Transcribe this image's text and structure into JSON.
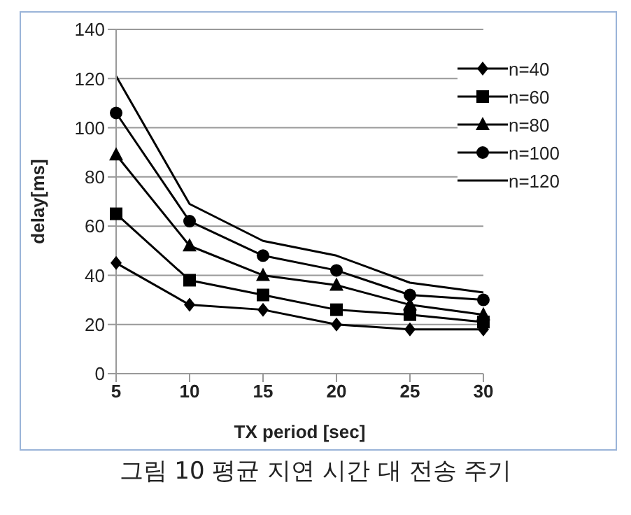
{
  "chart_data": {
    "type": "line",
    "categories": [
      "5",
      "10",
      "15",
      "20",
      "25",
      "30"
    ],
    "xlabel": "TX period [sec]",
    "ylabel": "delay[ms]",
    "ylim": [
      0,
      140
    ],
    "yticks": [
      0,
      20,
      40,
      60,
      80,
      100,
      120,
      140
    ],
    "grid": "y",
    "legend": "top right",
    "annotations": [
      "그림 10 평균 지연 시간 대 전송 주기"
    ],
    "series": [
      {
        "name": "n=40",
        "color": "#000000",
        "marker": "diamond",
        "values": [
          45,
          28,
          26,
          20,
          18,
          18
        ]
      },
      {
        "name": "n=60",
        "color": "#000000",
        "marker": "square",
        "values": [
          65,
          38,
          32,
          26,
          24,
          21
        ]
      },
      {
        "name": "n=80",
        "color": "#000000",
        "marker": "triangle",
        "values": [
          89,
          52,
          40,
          36,
          28,
          24
        ]
      },
      {
        "name": "n=100",
        "color": "#000000",
        "marker": "circle",
        "values": [
          106,
          62,
          48,
          42,
          32,
          30
        ]
      },
      {
        "name": "n=120",
        "color": "#000000",
        "marker": "none",
        "values": [
          121,
          69,
          54,
          48,
          37,
          33
        ]
      }
    ]
  }
}
